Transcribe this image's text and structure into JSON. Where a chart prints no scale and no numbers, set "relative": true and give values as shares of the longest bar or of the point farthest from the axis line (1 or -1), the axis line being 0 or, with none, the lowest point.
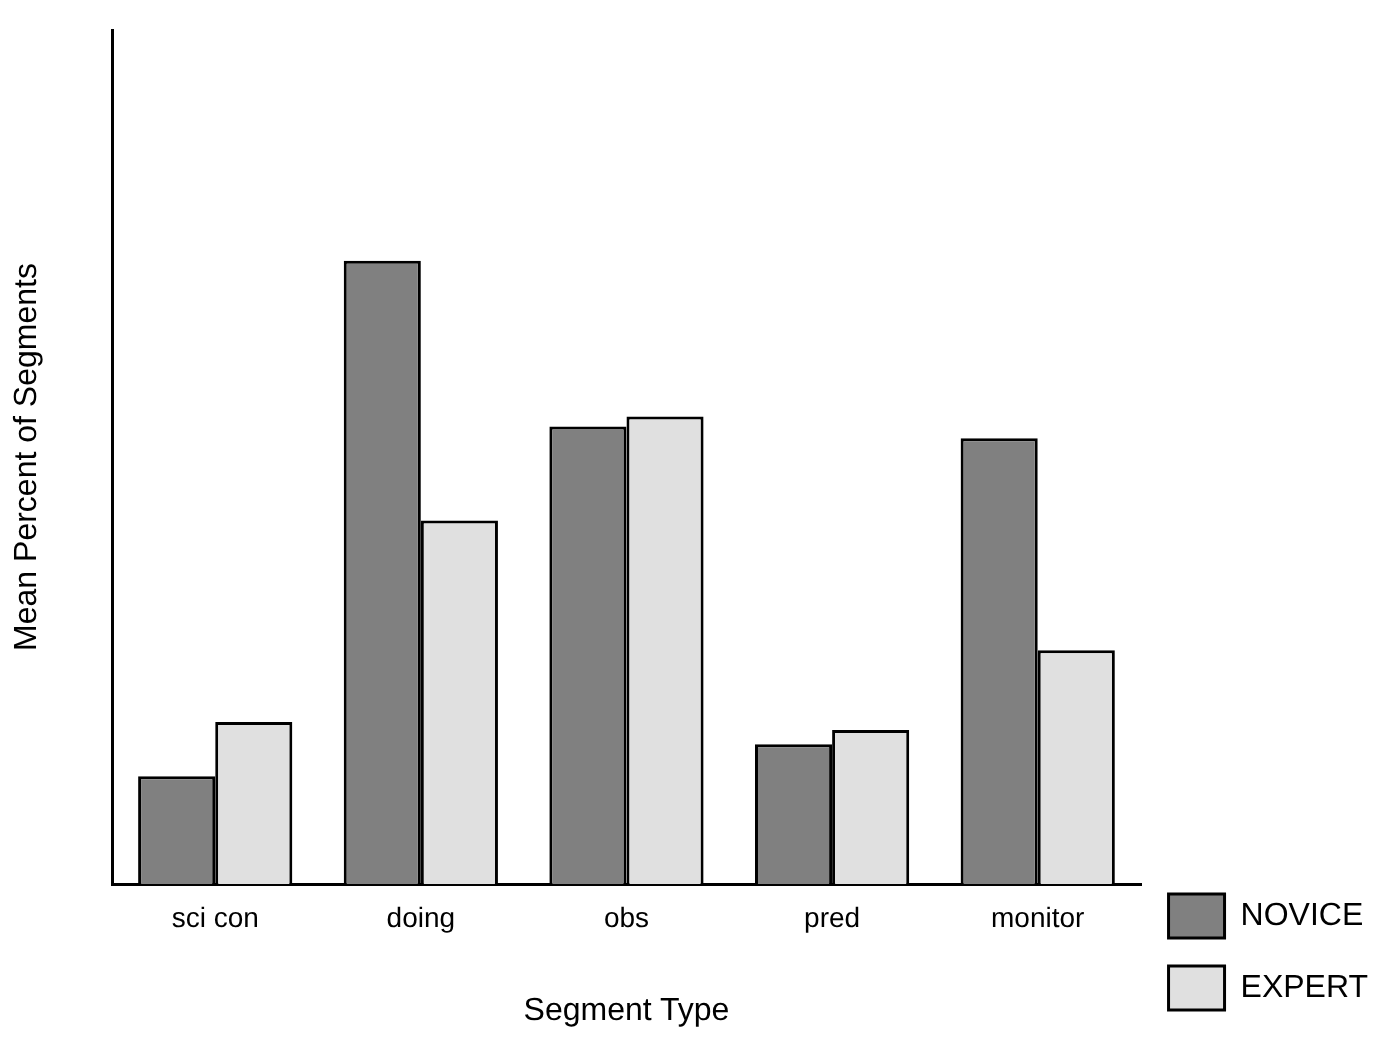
{
  "chart_data": {
    "type": "bar",
    "xlabel": "Segment Type",
    "ylabel": "Mean Percent of Segments",
    "categories": [
      "sci con",
      "doing",
      "obs",
      "pred",
      "monitor"
    ],
    "relative": true,
    "grid": false,
    "legend": "bottom right",
    "series": [
      {
        "name": "NOVICE",
        "color": "#808080",
        "values": [
          0.173,
          1,
          0.734,
          0.224,
          0.715
        ]
      },
      {
        "name": "EXPERT",
        "color": "#e0e0e0",
        "values": [
          0.26,
          0.583,
          0.75,
          0.247,
          0.375
        ]
      }
    ]
  }
}
